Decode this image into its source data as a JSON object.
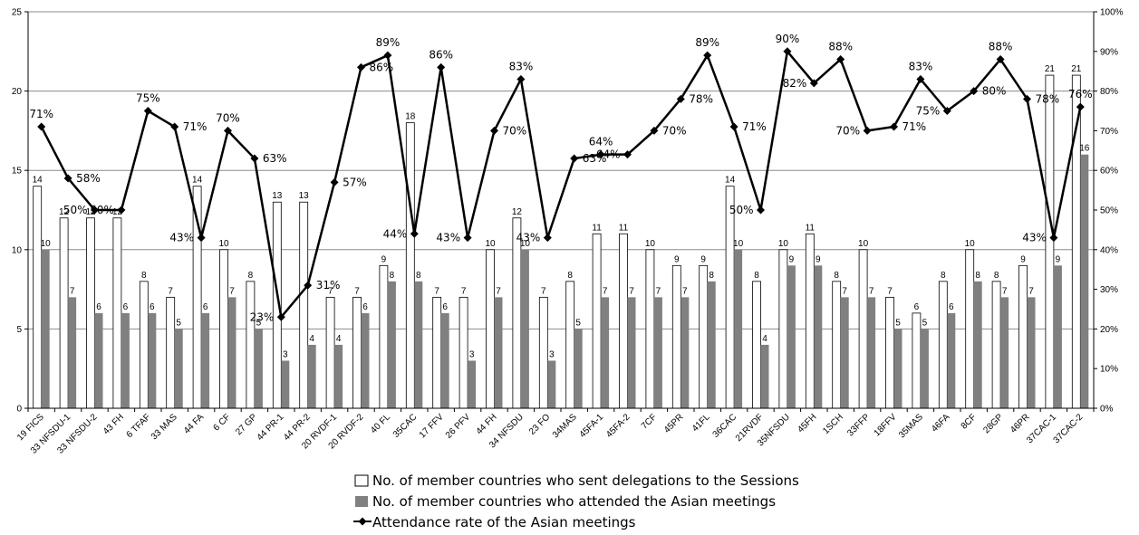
{
  "chart_data": {
    "type": "bar",
    "categories": [
      "19 FICS",
      "33 NFSDU-1",
      "33 NFSDU-2",
      "43 FH",
      "6 TFAF",
      "33 MAS",
      "44 FA",
      "6 CF",
      "27 GP",
      "44 PR-1",
      "44 PR-2",
      "20 RVDF-1",
      "20 RVDF-2",
      "40 FL",
      "35CAC",
      "17 FFV",
      "26 PFV",
      "44 FH",
      "34 NFSDU",
      "23 FO",
      "34MAS",
      "45FA-1",
      "45FA-2",
      "7CF",
      "45PR",
      "41FL",
      "36CAC",
      "21RVDF",
      "35NFSDU",
      "45FH",
      "1SCH",
      "33FFP",
      "18FFV",
      "35MAS",
      "46FA",
      "8CF",
      "28GP",
      "46PR",
      "37CAC-1",
      "37CAC-2"
    ],
    "series": [
      {
        "name": "No. of member countries who sent delegations to the Sessions",
        "type": "bar",
        "color": "#ffffff",
        "values": [
          14,
          12,
          12,
          12,
          8,
          7,
          14,
          10,
          8,
          13,
          13,
          7,
          7,
          9,
          18,
          7,
          7,
          10,
          12,
          7,
          8,
          11,
          11,
          10,
          9,
          9,
          14,
          8,
          10,
          11,
          8,
          10,
          7,
          6,
          8,
          10,
          8,
          9,
          21,
          21
        ]
      },
      {
        "name": "No. of member countries who attended the Asian meetings",
        "type": "bar",
        "color": "#808080",
        "values": [
          10,
          7,
          6,
          6,
          6,
          5,
          6,
          7,
          5,
          3,
          4,
          4,
          6,
          8,
          8,
          6,
          3,
          7,
          10,
          3,
          5,
          7,
          7,
          7,
          7,
          8,
          10,
          4,
          9,
          9,
          7,
          7,
          5,
          5,
          6,
          8,
          7,
          7,
          9,
          16
        ]
      },
      {
        "name": "Attendance rate of the Asian meetings",
        "type": "line",
        "axis": "right",
        "color": "#000000",
        "values": [
          71,
          58,
          50,
          50,
          75,
          71,
          43,
          70,
          63,
          23,
          31,
          57,
          86,
          89,
          44,
          86,
          43,
          70,
          83,
          43,
          63,
          64,
          64,
          70,
          78,
          89,
          71,
          50,
          90,
          82,
          88,
          70,
          71,
          83,
          75,
          80,
          88,
          78,
          43,
          76
        ]
      }
    ],
    "ylim": [
      0,
      25
    ],
    "yticks": [
      "0",
      "5",
      "10",
      "15",
      "20",
      "25"
    ],
    "y2lim": [
      0,
      100
    ],
    "y2ticks": [
      "0%",
      "10%",
      "20%",
      "30%",
      "40%",
      "50%",
      "60%",
      "70%",
      "80%",
      "90%",
      "100%"
    ],
    "grid": true,
    "legend_position": "bottom"
  }
}
